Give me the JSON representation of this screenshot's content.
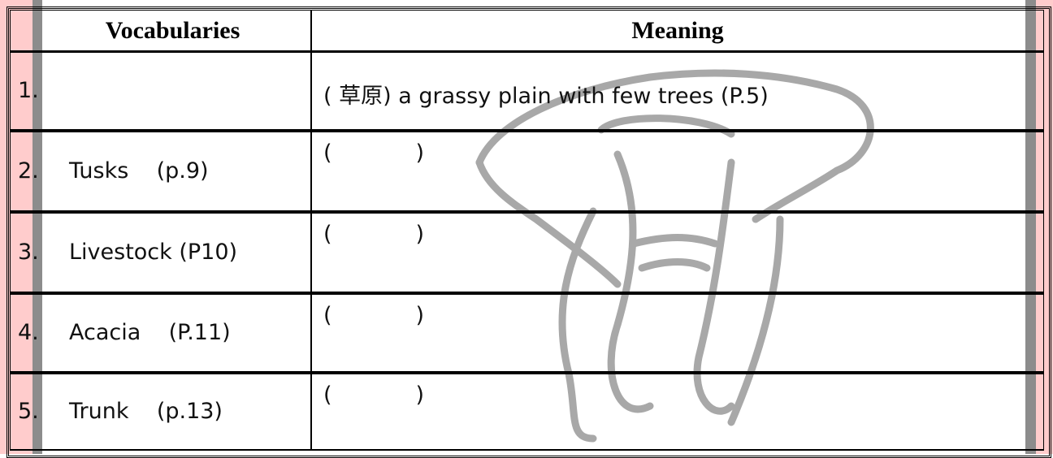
{
  "header": {
    "vocabulary": "Vocabularies",
    "meaning": "Meaning"
  },
  "rows": [
    {
      "number": "1.",
      "meaning": "( 草原) a grassy plain with few trees (P.5)"
    },
    {
      "number": "2.",
      "word": "Tusks    (p.9)",
      "meaning": "(            )"
    },
    {
      "number": "3.",
      "word": "Livestock (P10)",
      "meaning": "(            )"
    },
    {
      "number": "4.",
      "word": "Acacia    (P.11)",
      "meaning": "(            )"
    },
    {
      "number": "5.",
      "word": "Trunk    (p.13)",
      "meaning": "(            )"
    }
  ]
}
